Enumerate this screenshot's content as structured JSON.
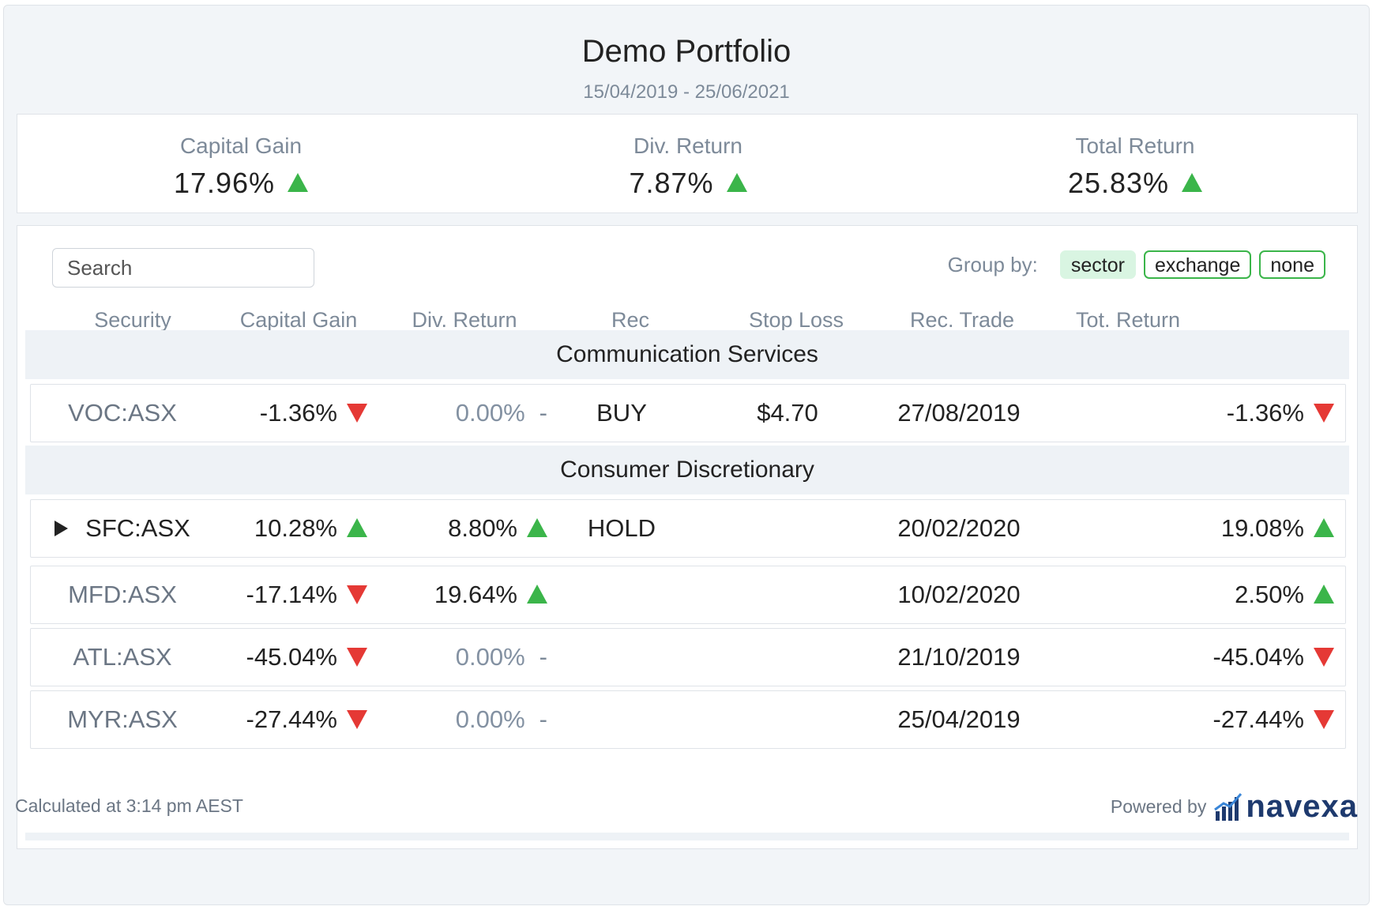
{
  "header": {
    "title": "Demo Portfolio",
    "date_range": "15/04/2019 - 25/06/2021"
  },
  "summary": [
    {
      "label": "Capital Gain",
      "value": "17.96%",
      "trend": "up"
    },
    {
      "label": "Div. Return",
      "value": "7.87%",
      "trend": "up"
    },
    {
      "label": "Total Return",
      "value": "25.83%",
      "trend": "up"
    }
  ],
  "search": {
    "placeholder": "Search",
    "value": ""
  },
  "group_by": {
    "label": "Group by:",
    "options": [
      "sector",
      "exchange",
      "none"
    ],
    "selected": "sector"
  },
  "columns": [
    "Security",
    "Capital Gain",
    "Div. Return",
    "Rec",
    "Stop Loss",
    "Rec. Trade",
    "Tot. Return"
  ],
  "groups": [
    {
      "name": "Communication Services",
      "rows": [
        {
          "security": "VOC:ASX",
          "capital_gain": "-1.36%",
          "cg_trend": "down",
          "div_return": "0.00%",
          "dr_trend": "none",
          "rec": "BUY",
          "stop_loss": "$4.70",
          "rec_trade": "27/08/2019",
          "tot_return": "-1.36%",
          "tr_trend": "down"
        }
      ]
    },
    {
      "name": "Consumer Discretionary",
      "rows": [
        {
          "security": "SFC:ASX",
          "expandable": true,
          "capital_gain": "10.28%",
          "cg_trend": "up",
          "div_return": "8.80%",
          "dr_trend": "up",
          "rec": "HOLD",
          "stop_loss": "",
          "rec_trade": "20/02/2020",
          "tot_return": "19.08%",
          "tr_trend": "up"
        },
        {
          "security": "MFD:ASX",
          "capital_gain": "-17.14%",
          "cg_trend": "down",
          "div_return": "19.64%",
          "dr_trend": "up",
          "rec": "",
          "stop_loss": "",
          "rec_trade": "10/02/2020",
          "tot_return": "2.50%",
          "tr_trend": "up"
        },
        {
          "security": "ATL:ASX",
          "capital_gain": "-45.04%",
          "cg_trend": "down",
          "div_return": "0.00%",
          "dr_trend": "none",
          "rec": "",
          "stop_loss": "",
          "rec_trade": "21/10/2019",
          "tot_return": "-45.04%",
          "tr_trend": "down"
        },
        {
          "security": "MYR:ASX",
          "capital_gain": "-27.44%",
          "cg_trend": "down",
          "div_return": "0.00%",
          "dr_trend": "none",
          "rec": "",
          "stop_loss": "",
          "rec_trade": "25/04/2019",
          "tot_return": "-27.44%",
          "tr_trend": "down"
        }
      ]
    }
  ],
  "footer": {
    "calculated": "Calculated at 3:14 pm AEST",
    "powered_by": "Powered by",
    "brand": "navexa"
  },
  "colors": {
    "up": "#3bb54a",
    "down": "#e53935",
    "brand": "#1e3a6e",
    "muted": "#7d8a99"
  },
  "icons": {
    "up": "triangle-up-icon",
    "down": "triangle-down-icon",
    "expand": "expand-caret-icon",
    "logo": "navexa-bars-icon"
  }
}
